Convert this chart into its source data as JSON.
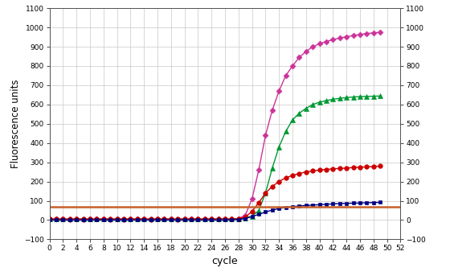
{
  "title": "",
  "xlabel": "cycle",
  "ylabel": "Fluorescence units",
  "xlim": [
    0,
    52
  ],
  "ylim": [
    -100,
    1100
  ],
  "yticks": [
    -100,
    0,
    100,
    200,
    300,
    400,
    500,
    600,
    700,
    800,
    900,
    1000,
    1100
  ],
  "xticks": [
    0,
    2,
    4,
    6,
    8,
    10,
    12,
    14,
    16,
    18,
    20,
    22,
    24,
    26,
    28,
    30,
    32,
    34,
    36,
    38,
    40,
    42,
    44,
    46,
    48,
    50,
    52
  ],
  "threshold_y": 70,
  "threshold_color": "#c8602a",
  "background_color": "#ffffff",
  "grid_color": "#c8c8c8",
  "series": [
    {
      "name": "pink_diamond",
      "color": "#cc3399",
      "marker": "D",
      "markersize": 3.5,
      "linewidth": 1.0,
      "x": [
        0,
        1,
        2,
        3,
        4,
        5,
        6,
        7,
        8,
        9,
        10,
        11,
        12,
        13,
        14,
        15,
        16,
        17,
        18,
        19,
        20,
        21,
        22,
        23,
        24,
        25,
        26,
        27,
        28,
        29,
        30,
        31,
        32,
        33,
        34,
        35,
        36,
        37,
        38,
        39,
        40,
        41,
        42,
        43,
        44,
        45,
        46,
        47,
        48,
        49
      ],
      "y": [
        5,
        5,
        5,
        4,
        5,
        4,
        5,
        5,
        5,
        4,
        5,
        4,
        5,
        5,
        5,
        4,
        5,
        5,
        5,
        4,
        5,
        5,
        5,
        5,
        5,
        5,
        5,
        5,
        8,
        25,
        110,
        260,
        440,
        570,
        670,
        750,
        800,
        845,
        875,
        900,
        915,
        927,
        937,
        945,
        952,
        958,
        963,
        968,
        972,
        975
      ]
    },
    {
      "name": "green_triangle",
      "color": "#009933",
      "marker": "^",
      "markersize": 4,
      "linewidth": 1.0,
      "x": [
        0,
        1,
        2,
        3,
        4,
        5,
        6,
        7,
        8,
        9,
        10,
        11,
        12,
        13,
        14,
        15,
        16,
        17,
        18,
        19,
        20,
        21,
        22,
        23,
        24,
        25,
        26,
        27,
        28,
        29,
        30,
        31,
        32,
        33,
        34,
        35,
        36,
        37,
        38,
        39,
        40,
        41,
        42,
        43,
        44,
        45,
        46,
        47,
        48,
        49
      ],
      "y": [
        5,
        5,
        5,
        5,
        5,
        5,
        5,
        5,
        5,
        5,
        5,
        5,
        5,
        5,
        5,
        5,
        5,
        5,
        5,
        5,
        5,
        5,
        5,
        5,
        5,
        5,
        5,
        5,
        8,
        12,
        20,
        50,
        140,
        270,
        380,
        460,
        520,
        555,
        580,
        600,
        612,
        620,
        627,
        632,
        636,
        639,
        641,
        642,
        643,
        644
      ]
    },
    {
      "name": "red_circle",
      "color": "#cc0000",
      "marker": "o",
      "markersize": 4,
      "linewidth": 1.0,
      "x": [
        0,
        1,
        2,
        3,
        4,
        5,
        6,
        7,
        8,
        9,
        10,
        11,
        12,
        13,
        14,
        15,
        16,
        17,
        18,
        19,
        20,
        21,
        22,
        23,
        24,
        25,
        26,
        27,
        28,
        29,
        30,
        31,
        32,
        33,
        34,
        35,
        36,
        37,
        38,
        39,
        40,
        41,
        42,
        43,
        44,
        45,
        46,
        47,
        48,
        49
      ],
      "y": [
        5,
        5,
        5,
        5,
        5,
        5,
        5,
        5,
        5,
        5,
        5,
        5,
        5,
        5,
        5,
        5,
        5,
        5,
        5,
        5,
        5,
        5,
        5,
        5,
        5,
        5,
        5,
        5,
        8,
        15,
        45,
        90,
        140,
        175,
        200,
        220,
        232,
        242,
        250,
        255,
        260,
        263,
        266,
        268,
        270,
        273,
        275,
        276,
        278,
        280
      ]
    },
    {
      "name": "navy_square",
      "color": "#000080",
      "marker": "s",
      "markersize": 3.5,
      "linewidth": 1.0,
      "x": [
        0,
        1,
        2,
        3,
        4,
        5,
        6,
        7,
        8,
        9,
        10,
        11,
        12,
        13,
        14,
        15,
        16,
        17,
        18,
        19,
        20,
        21,
        22,
        23,
        24,
        25,
        26,
        27,
        28,
        29,
        30,
        31,
        32,
        33,
        34,
        35,
        36,
        37,
        38,
        39,
        40,
        41,
        42,
        43,
        44,
        45,
        46,
        47,
        48,
        49
      ],
      "y": [
        0,
        0,
        0,
        0,
        0,
        0,
        0,
        0,
        0,
        0,
        0,
        0,
        0,
        0,
        0,
        0,
        0,
        0,
        0,
        0,
        0,
        0,
        0,
        0,
        0,
        0,
        0,
        0,
        3,
        8,
        18,
        30,
        42,
        52,
        60,
        66,
        70,
        73,
        76,
        78,
        80,
        82,
        84,
        86,
        87,
        88,
        89,
        90,
        91,
        92
      ]
    }
  ]
}
